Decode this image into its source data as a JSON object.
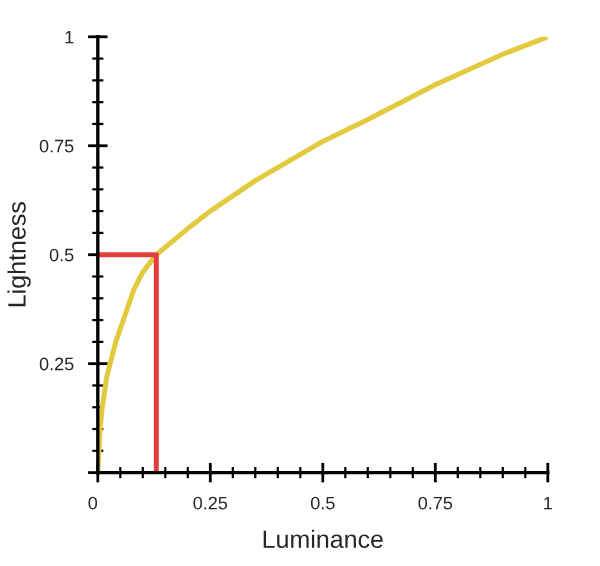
{
  "chart_data": {
    "type": "line",
    "xlabel": "Luminance",
    "ylabel": "Lightness",
    "xlim": [
      0,
      1
    ],
    "ylim": [
      0,
      1
    ],
    "xticks": [
      0,
      0.25,
      0.5,
      0.75,
      1
    ],
    "yticks": [
      {
        "value": 0,
        "label": null
      },
      0.25,
      0.5,
      0.75,
      1
    ],
    "grid": false,
    "marker": "none",
    "line_style": "solid",
    "series": [
      {
        "color": "#e2c93e",
        "x": [
          0,
          0.005,
          0.01,
          0.02,
          0.04,
          0.06,
          0.08,
          0.1,
          0.13,
          0.2,
          0.25,
          0.35,
          0.5,
          0.6,
          0.75,
          0.9,
          1
        ],
        "values": [
          0,
          0.1,
          0.15,
          0.22,
          0.3,
          0.36,
          0.42,
          0.46,
          0.5,
          0.56,
          0.6,
          0.67,
          0.76,
          0.81,
          0.89,
          0.96,
          1
        ]
      },
      {
        "color": "#e23c3c",
        "x": [
          0.13,
          0.13,
          0
        ],
        "values": [
          0,
          0.5,
          0.5
        ]
      }
    ]
  }
}
